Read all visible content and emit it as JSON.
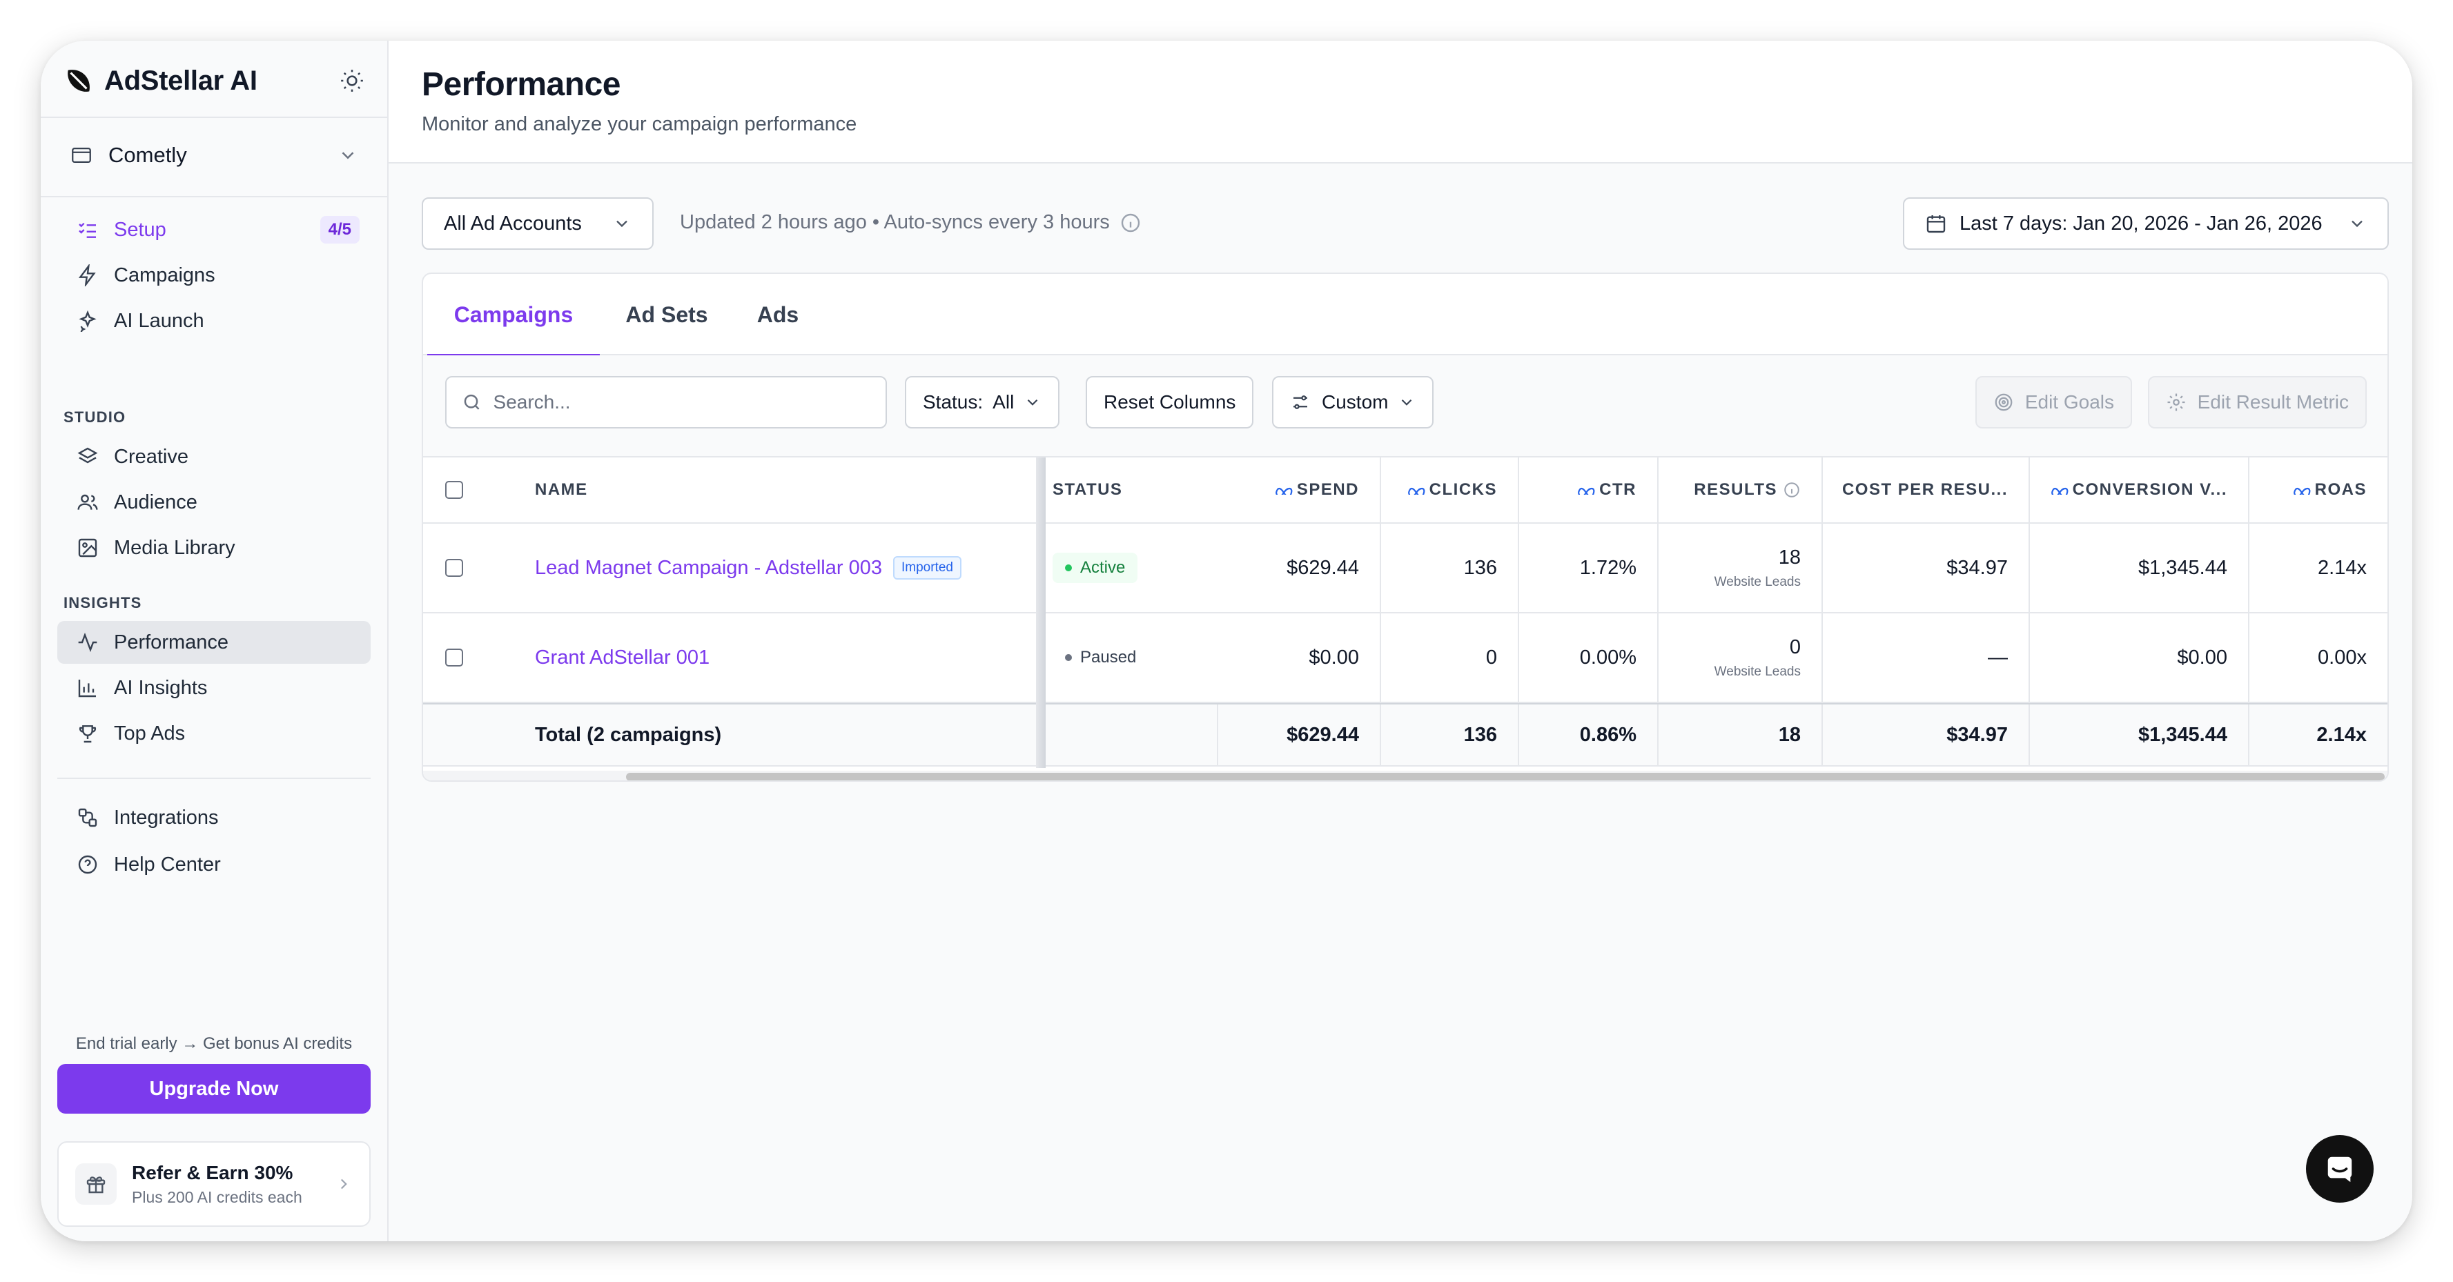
{
  "brand": {
    "name": "AdStellar AI"
  },
  "workspace": {
    "name": "Cometly"
  },
  "nav": {
    "setup": {
      "label": "Setup",
      "badge": "4/5"
    },
    "campaigns": "Campaigns",
    "ai_launch": "AI Launch",
    "studio_label": "STUDIO",
    "creative": "Creative",
    "audience": "Audience",
    "media_library": "Media Library",
    "insights_label": "INSIGHTS",
    "performance": "Performance",
    "ai_insights": "AI Insights",
    "top_ads": "Top Ads",
    "integrations": "Integrations",
    "help_center": "Help Center"
  },
  "trial": {
    "text": "End trial early → Get bonus AI credits",
    "upgrade": "Upgrade Now"
  },
  "refer": {
    "title": "Refer & Earn 30%",
    "subtitle": "Plus 200 AI credits each"
  },
  "page": {
    "title": "Performance",
    "subtitle": "Monitor and analyze your campaign performance"
  },
  "filters": {
    "account": "All Ad Accounts",
    "sync": "Updated 2 hours ago • Auto-syncs every 3 hours",
    "date_range": "Last 7 days: Jan 20, 2026 - Jan 26, 2026"
  },
  "tabs": [
    "Campaigns",
    "Ad Sets",
    "Ads"
  ],
  "toolbar": {
    "search_placeholder": "Search...",
    "status": "Status:  All",
    "reset": "Reset Columns",
    "custom": "Custom",
    "edit_goals": "Edit Goals",
    "edit_result_metric": "Edit Result Metric"
  },
  "columns": {
    "name": "NAME",
    "status": "STATUS",
    "spend": "SPEND",
    "clicks": "CLICKS",
    "ctr": "CTR",
    "results": "RESULTS",
    "cost_per_result": "COST PER RESU...",
    "conversion_value": "CONVERSION V...",
    "roas": "ROAS"
  },
  "rows": [
    {
      "name": "Lead Magnet Campaign - Adstellar 003",
      "tag": "Imported",
      "status": "Active",
      "spend": "$629.44",
      "clicks": "136",
      "ctr": "1.72%",
      "results": "18",
      "results_sub": "Website Leads",
      "cpr": "$34.97",
      "conv": "$1,345.44",
      "roas": "2.14x"
    },
    {
      "name": "Grant AdStellar 001",
      "tag": "",
      "status": "Paused",
      "spend": "$0.00",
      "clicks": "0",
      "ctr": "0.00%",
      "results": "0",
      "results_sub": "Website Leads",
      "cpr": "—",
      "conv": "$0.00",
      "roas": "0.00x"
    }
  ],
  "total": {
    "label": "Total (2 campaigns)",
    "spend": "$629.44",
    "clicks": "136",
    "ctr": "0.86%",
    "results": "18",
    "cpr": "$34.97",
    "conv": "$1,345.44",
    "roas": "2.14x"
  },
  "colors": {
    "accent": "#7c3aed",
    "active": "#15803d",
    "meta": "#2563eb"
  }
}
